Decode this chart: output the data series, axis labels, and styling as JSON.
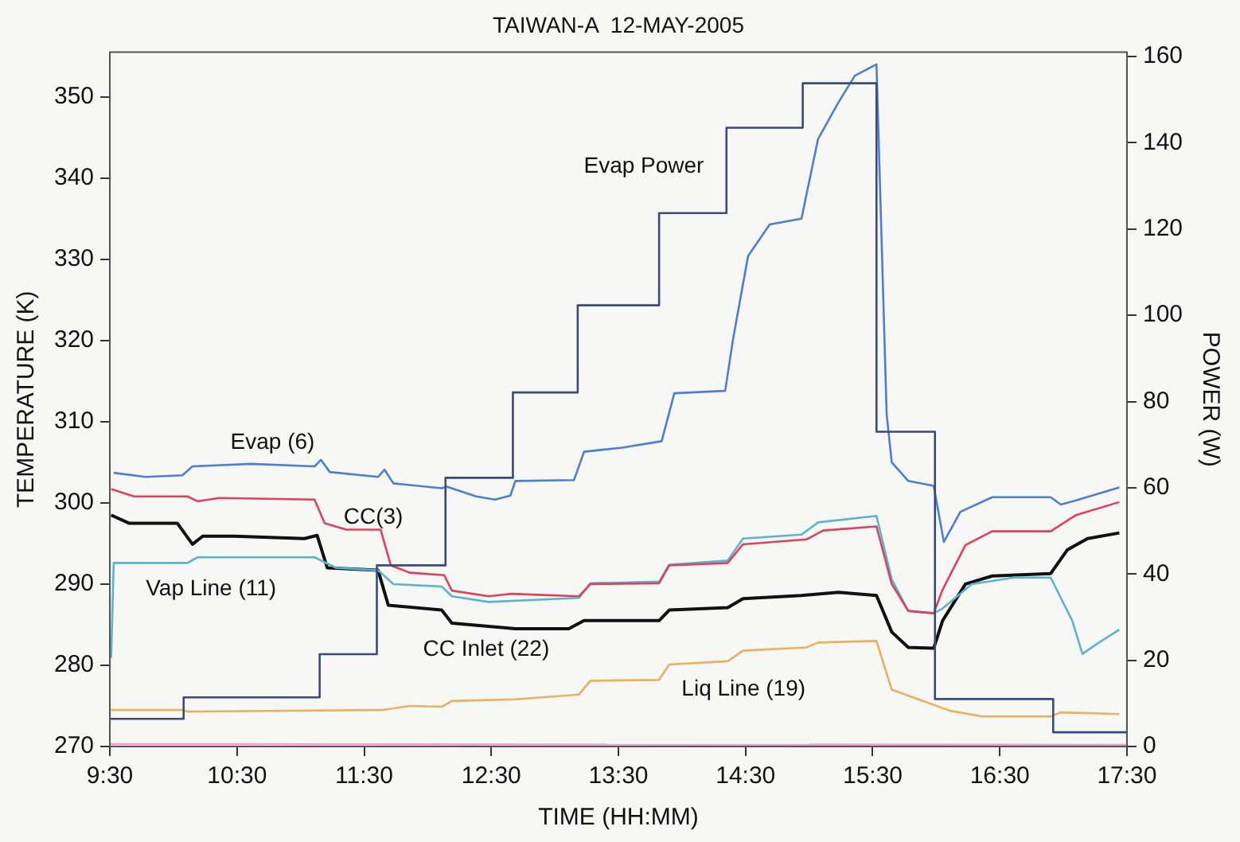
{
  "chart_data": {
    "type": "line",
    "title": "TAIWAN-A  12-MAY-2005",
    "xlabel": "TIME (HH:MM)",
    "ylabel": "TEMPERATURE (K)",
    "y2label": "POWER (W)",
    "xlim": [
      9.5,
      17.5
    ],
    "xticks": [
      {
        "value": 9.5,
        "label": "9:30"
      },
      {
        "value": 10.5,
        "label": "10:30"
      },
      {
        "value": 11.5,
        "label": "11:30"
      },
      {
        "value": 12.5,
        "label": "12:30"
      },
      {
        "value": 13.5,
        "label": "13:30"
      },
      {
        "value": 14.5,
        "label": "14:30"
      },
      {
        "value": 15.5,
        "label": "15:30"
      },
      {
        "value": 16.5,
        "label": "16:30"
      },
      {
        "value": 17.5,
        "label": "17:30"
      }
    ],
    "ylim": [
      270,
      355.5
    ],
    "yticks": [
      270,
      280,
      290,
      300,
      310,
      320,
      330,
      340,
      350
    ],
    "y2lim": [
      0,
      161
    ],
    "y2ticks": [
      0,
      20,
      40,
      60,
      80,
      100,
      120,
      140,
      160
    ],
    "grid": false,
    "legend": false,
    "marker": "none",
    "line_style": "solid",
    "series": [
      {
        "name": "Evap Power",
        "type": "step",
        "axis": "y2",
        "color": "#3a4a7a",
        "x": [
          9.5,
          10.08,
          11.15,
          11.6,
          12.14,
          12.67,
          13.18,
          13.82,
          14.35,
          14.95,
          15.53,
          15.99,
          16.92,
          17.5
        ],
        "values": [
          6.4,
          11.4,
          21.4,
          42,
          62.3,
          82.1,
          102.3,
          123.7,
          143.5,
          153.8,
          73,
          11,
          3.3,
          3.3
        ]
      },
      {
        "name": "Evap (6)",
        "type": "line",
        "color": "#4a7fd4",
        "x": [
          9.53,
          9.78,
          10.07,
          10.15,
          10.61,
          11.11,
          11.16,
          11.23,
          11.61,
          11.66,
          11.73,
          12.11,
          12.15,
          12.38,
          12.53,
          12.65,
          12.69,
          13.15,
          13.23,
          13.53,
          13.84,
          13.94,
          14.34,
          14.4,
          14.52,
          14.69,
          14.94,
          15.07,
          15.23,
          15.36,
          15.53,
          15.61,
          15.65,
          15.78,
          15.98,
          16.06,
          16.19,
          16.44,
          16.9,
          16.98,
          17.1,
          17.44
        ],
        "values": [
          303.7,
          303.2,
          303.4,
          304.5,
          304.8,
          304.5,
          305.3,
          303.8,
          303.2,
          304.1,
          302.4,
          301.8,
          302,
          300.8,
          300.4,
          300.9,
          302.7,
          302.8,
          306.3,
          306.8,
          307.6,
          313.5,
          313.8,
          320,
          330.4,
          334.3,
          335,
          344.8,
          349.3,
          352.6,
          354,
          310.9,
          305,
          302.7,
          302.1,
          295.2,
          298.9,
          300.7,
          300.7,
          299.8,
          300.3,
          301.9
        ]
      },
      {
        "name": "CC(3)",
        "type": "line",
        "color": "#e0405a",
        "x": [
          9.51,
          9.69,
          10.11,
          10.19,
          10.36,
          11.11,
          11.19,
          11.36,
          11.63,
          11.71,
          11.86,
          12.13,
          12.19,
          12.48,
          12.65,
          13.19,
          13.28,
          13.82,
          13.9,
          14.36,
          14.48,
          14.98,
          15.11,
          15.53,
          15.65,
          15.78,
          15.98,
          16.05,
          16.23,
          16.44,
          16.9,
          17.1,
          17.44
        ],
        "values": [
          301.7,
          300.8,
          300.8,
          300.2,
          300.6,
          300.4,
          297.5,
          296.7,
          296.7,
          292.3,
          291.4,
          291.1,
          289.2,
          288.5,
          288.8,
          288.5,
          290,
          290.1,
          292.3,
          292.6,
          294.9,
          295.5,
          296.6,
          297.1,
          290,
          286.7,
          286.4,
          289.3,
          294.8,
          296.5,
          296.5,
          298.5,
          300.1
        ]
      },
      {
        "name": "Vap Line (11)",
        "type": "line",
        "color": "#5ab4d0",
        "x": [
          9.51,
          9.53,
          10.11,
          10.19,
          11.11,
          11.28,
          11.61,
          11.73,
          12.11,
          12.19,
          12.48,
          13.19,
          13.28,
          13.82,
          13.9,
          14.36,
          14.48,
          14.94,
          15.07,
          15.53,
          15.65,
          15.78,
          15.98,
          16.05,
          16.28,
          16.61,
          16.9,
          17.07,
          17.15,
          17.28,
          17.44
        ],
        "values": [
          280.9,
          292.6,
          292.6,
          293.3,
          293.3,
          292,
          291.7,
          290,
          289.7,
          288.5,
          287.8,
          288.3,
          290.1,
          290.3,
          292.4,
          292.9,
          295.6,
          296.1,
          297.6,
          298.4,
          290.6,
          286.7,
          286.4,
          287,
          290,
          290.8,
          290.8,
          285.5,
          281.4,
          282.8,
          284.4
        ]
      },
      {
        "name": "CC Inlet (22)",
        "type": "line",
        "color": "#111111",
        "x": [
          9.51,
          9.65,
          10.03,
          10.15,
          10.23,
          10.48,
          11.03,
          11.13,
          11.21,
          11.61,
          11.69,
          12.11,
          12.19,
          12.69,
          13.11,
          13.23,
          13.82,
          13.9,
          14.36,
          14.48,
          14.94,
          15.23,
          15.53,
          15.65,
          15.78,
          15.98,
          16.05,
          16.23,
          16.44,
          16.9,
          17.03,
          17.19,
          17.44
        ],
        "values": [
          298.5,
          297.5,
          297.5,
          294.9,
          295.9,
          295.9,
          295.6,
          296,
          292,
          291.7,
          287.4,
          286.8,
          285.2,
          284.5,
          284.5,
          285.5,
          285.5,
          286.8,
          287.1,
          288.2,
          288.6,
          289,
          288.6,
          284.1,
          282.2,
          282.1,
          285.5,
          290,
          291,
          291.3,
          294.2,
          295.6,
          296.3
        ]
      },
      {
        "name": "Liq Line (19)",
        "type": "line",
        "color": "#e8b060",
        "x": [
          9.51,
          10.07,
          10.11,
          11.65,
          11.86,
          12.11,
          12.19,
          12.69,
          13.19,
          13.28,
          13.82,
          13.9,
          14.36,
          14.48,
          14.98,
          15.07,
          15.53,
          15.65,
          15.86,
          16.11,
          16.36,
          16.9,
          16.98,
          17.44
        ],
        "values": [
          274.5,
          274.5,
          274.3,
          274.5,
          275,
          274.9,
          275.6,
          275.8,
          276.4,
          278.1,
          278.2,
          280.1,
          280.5,
          281.8,
          282.2,
          282.8,
          283,
          277,
          275.8,
          274.4,
          273.7,
          273.7,
          274.2,
          274
        ]
      },
      {
        "type": "line",
        "color": "#f0a0c8",
        "x": [
          9.5,
          17.5
        ],
        "values": [
          270.3,
          270.2
        ]
      }
    ]
  }
}
